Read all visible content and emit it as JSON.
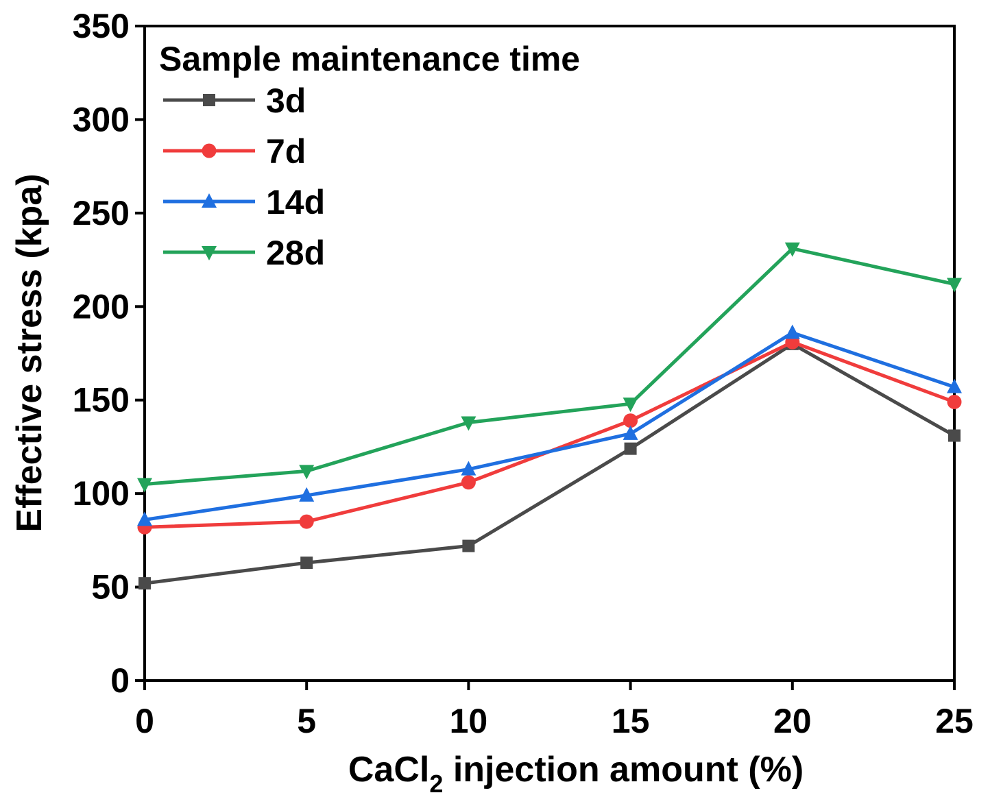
{
  "chart_data": {
    "type": "line",
    "title": "",
    "xlabel": {
      "prefix": "CaCl",
      "subscript": "2",
      "suffix": " injection amount (%)"
    },
    "ylabel": "Effective stress (kpa)",
    "x": [
      0,
      5,
      10,
      15,
      20,
      25
    ],
    "xlim": [
      0,
      25
    ],
    "ylim": [
      0,
      350
    ],
    "xticks": [
      0,
      5,
      10,
      15,
      20,
      25
    ],
    "yticks": [
      0,
      50,
      100,
      150,
      200,
      250,
      300,
      350
    ],
    "grid": false,
    "legend": {
      "title": "Sample maintenance time",
      "position": "top-left"
    },
    "series": [
      {
        "name": "3d",
        "color": "#4a4a4a",
        "marker": "square",
        "values": [
          52,
          63,
          72,
          124,
          180,
          131
        ]
      },
      {
        "name": "7d",
        "color": "#f03c3c",
        "marker": "circle",
        "values": [
          82,
          85,
          106,
          139,
          181,
          149
        ]
      },
      {
        "name": "14d",
        "color": "#1f6fe0",
        "marker": "triangle-up",
        "values": [
          86,
          99,
          113,
          132,
          186,
          157
        ]
      },
      {
        "name": "28d",
        "color": "#23a35a",
        "marker": "triangle-down",
        "values": [
          105,
          112,
          138,
          148,
          231,
          212
        ]
      }
    ]
  }
}
